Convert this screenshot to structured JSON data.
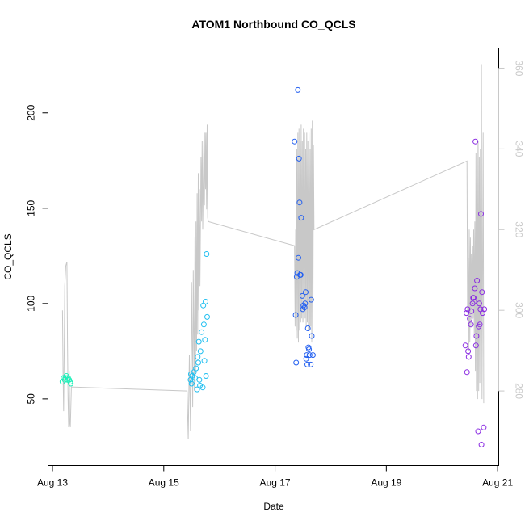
{
  "chart_data": {
    "type": "scatter",
    "title": "ATOM1 Northbound CO_QCLS",
    "xlabel": "Date",
    "ylabel": "CO_QCLS",
    "xlim": [
      12.92,
      21.02
    ],
    "ylim": [
      15,
      234
    ],
    "x_ticks": [
      13,
      15,
      17,
      19,
      21
    ],
    "x_tick_labels": [
      "Aug 13",
      "Aug 15",
      "Aug 17",
      "Aug 19",
      "Aug 21"
    ],
    "y_ticks": [
      50,
      100,
      150,
      200
    ],
    "y2_ticks": [
      280,
      300,
      320,
      340,
      360
    ],
    "y2lim": [
      261.5,
      365
    ],
    "y2_color": "#c8c8c8",
    "grid": false,
    "legend": "none",
    "series": [
      {
        "color": "#1ff0b9",
        "points": [
          [
            13.18,
            59
          ],
          [
            13.2,
            61
          ],
          [
            13.22,
            60
          ],
          [
            13.23,
            61
          ],
          [
            13.25,
            62
          ],
          [
            13.27,
            60
          ],
          [
            13.28,
            61
          ],
          [
            13.3,
            60
          ],
          [
            13.32,
            59
          ],
          [
            13.33,
            58
          ]
        ]
      },
      {
        "color": "#21bff0",
        "points": [
          [
            15.48,
            60
          ],
          [
            15.49,
            63
          ],
          [
            15.5,
            58
          ],
          [
            15.51,
            62
          ],
          [
            15.52,
            59
          ],
          [
            15.54,
            64
          ],
          [
            15.56,
            61
          ],
          [
            15.58,
            66
          ],
          [
            15.6,
            55
          ],
          [
            15.61,
            72
          ],
          [
            15.62,
            69
          ],
          [
            15.63,
            80
          ],
          [
            15.64,
            60
          ],
          [
            15.65,
            57
          ],
          [
            15.66,
            75
          ],
          [
            15.68,
            85
          ],
          [
            15.7,
            56
          ],
          [
            15.71,
            99
          ],
          [
            15.72,
            89
          ],
          [
            15.73,
            70
          ],
          [
            15.74,
            81
          ],
          [
            15.75,
            101
          ],
          [
            15.76,
            62
          ],
          [
            15.77,
            126
          ],
          [
            15.78,
            93
          ]
        ]
      },
      {
        "color": "#2460f0",
        "points": [
          [
            17.35,
            185
          ],
          [
            17.37,
            94
          ],
          [
            17.38,
            69
          ],
          [
            17.39,
            114
          ],
          [
            17.4,
            116
          ],
          [
            17.41,
            212
          ],
          [
            17.42,
            124
          ],
          [
            17.43,
            176
          ],
          [
            17.44,
            153
          ],
          [
            17.45,
            115
          ],
          [
            17.46,
            115
          ],
          [
            17.47,
            145
          ],
          [
            17.49,
            104
          ],
          [
            17.5,
            97
          ],
          [
            17.51,
            99
          ],
          [
            17.53,
            98
          ],
          [
            17.54,
            100
          ],
          [
            17.55,
            106
          ],
          [
            17.56,
            71
          ],
          [
            17.57,
            73
          ],
          [
            17.58,
            68
          ],
          [
            17.59,
            87
          ],
          [
            17.6,
            77
          ],
          [
            17.61,
            76
          ],
          [
            17.62,
            73
          ],
          [
            17.64,
            68
          ],
          [
            17.65,
            102
          ],
          [
            17.66,
            83
          ],
          [
            17.68,
            73
          ]
        ]
      },
      {
        "color": "#8a2be2",
        "points": [
          [
            20.42,
            78
          ],
          [
            20.44,
            95
          ],
          [
            20.45,
            64
          ],
          [
            20.46,
            97
          ],
          [
            20.47,
            75
          ],
          [
            20.48,
            72
          ],
          [
            20.5,
            92
          ],
          [
            20.52,
            89
          ],
          [
            20.53,
            96
          ],
          [
            20.55,
            100
          ],
          [
            20.56,
            103
          ],
          [
            20.57,
            103
          ],
          [
            20.58,
            101
          ],
          [
            20.59,
            108
          ],
          [
            20.6,
            185
          ],
          [
            20.61,
            78
          ],
          [
            20.62,
            83
          ],
          [
            20.63,
            112
          ],
          [
            20.65,
            33
          ],
          [
            20.66,
            88
          ],
          [
            20.67,
            100
          ],
          [
            20.68,
            89
          ],
          [
            20.69,
            97
          ],
          [
            20.7,
            147
          ],
          [
            20.71,
            26
          ],
          [
            20.72,
            106
          ],
          [
            20.73,
            95
          ],
          [
            20.75,
            35
          ],
          [
            20.76,
            97
          ]
        ]
      }
    ],
    "secondary_series": {
      "axis": "right",
      "color": "#c8c8c8",
      "points": [
        [
          13.18,
          300
        ],
        [
          13.19,
          285
        ],
        [
          13.2,
          275
        ],
        [
          13.21,
          289
        ],
        [
          13.22,
          306
        ],
        [
          13.24,
          311
        ],
        [
          13.26,
          312
        ],
        [
          13.27,
          292
        ],
        [
          13.28,
          278
        ],
        [
          13.29,
          271
        ],
        [
          13.3,
          285
        ],
        [
          13.31,
          272
        ],
        [
          13.32,
          271
        ],
        [
          13.34,
          281
        ],
        [
          15.42,
          280
        ],
        [
          15.44,
          268
        ],
        [
          15.46,
          289
        ],
        [
          15.48,
          270
        ],
        [
          15.5,
          307
        ],
        [
          15.52,
          276
        ],
        [
          15.53,
          310
        ],
        [
          15.55,
          280
        ],
        [
          15.56,
          318
        ],
        [
          15.57,
          285
        ],
        [
          15.58,
          322
        ],
        [
          15.59,
          290
        ],
        [
          15.6,
          329
        ],
        [
          15.61,
          294
        ],
        [
          15.62,
          334
        ],
        [
          15.63,
          300
        ],
        [
          15.64,
          330
        ],
        [
          15.65,
          306
        ],
        [
          15.67,
          338
        ],
        [
          15.68,
          322
        ],
        [
          15.69,
          342
        ],
        [
          15.7,
          320
        ],
        [
          15.72,
          342
        ],
        [
          15.73,
          326
        ],
        [
          15.74,
          344
        ],
        [
          15.75,
          330
        ],
        [
          15.76,
          344
        ],
        [
          15.77,
          325
        ],
        [
          15.78,
          346
        ],
        [
          15.79,
          323
        ],
        [
          15.8,
          322
        ],
        [
          17.35,
          316
        ],
        [
          17.36,
          296
        ],
        [
          17.37,
          320
        ],
        [
          17.38,
          295
        ],
        [
          17.39,
          340
        ],
        [
          17.4,
          293
        ],
        [
          17.41,
          344
        ],
        [
          17.42,
          292
        ],
        [
          17.43,
          345
        ],
        [
          17.44,
          295
        ],
        [
          17.45,
          342
        ],
        [
          17.46,
          297
        ],
        [
          17.47,
          346
        ],
        [
          17.48,
          298
        ],
        [
          17.49,
          342
        ],
        [
          17.5,
          297
        ],
        [
          17.51,
          345
        ],
        [
          17.52,
          297
        ],
        [
          17.53,
          344
        ],
        [
          17.54,
          298
        ],
        [
          17.55,
          340
        ],
        [
          17.56,
          296
        ],
        [
          17.57,
          344
        ],
        [
          17.58,
          297
        ],
        [
          17.59,
          342
        ],
        [
          17.6,
          295
        ],
        [
          17.61,
          344
        ],
        [
          17.62,
          295
        ],
        [
          17.63,
          340
        ],
        [
          17.64,
          296
        ],
        [
          17.65,
          345
        ],
        [
          17.66,
          292
        ],
        [
          17.67,
          347
        ],
        [
          17.68,
          294
        ],
        [
          17.69,
          341
        ],
        [
          17.7,
          320
        ],
        [
          20.45,
          337
        ],
        [
          20.46,
          300
        ],
        [
          20.47,
          313
        ],
        [
          20.48,
          290
        ],
        [
          20.49,
          320
        ],
        [
          20.5,
          292
        ],
        [
          20.51,
          318
        ],
        [
          20.52,
          296
        ],
        [
          20.53,
          314
        ],
        [
          20.54,
          300
        ],
        [
          20.55,
          316
        ],
        [
          20.56,
          298
        ],
        [
          20.57,
          320
        ],
        [
          20.58,
          294
        ],
        [
          20.59,
          322
        ],
        [
          20.6,
          285
        ],
        [
          20.61,
          339
        ],
        [
          20.62,
          280
        ],
        [
          20.63,
          343
        ],
        [
          20.64,
          278
        ],
        [
          20.65,
          342
        ],
        [
          20.66,
          280
        ],
        [
          20.67,
          338
        ],
        [
          20.68,
          282
        ],
        [
          20.69,
          340
        ],
        [
          20.7,
          290
        ],
        [
          20.71,
          361
        ],
        [
          20.72,
          278
        ],
        [
          20.74,
          344
        ],
        [
          20.75,
          277
        ]
      ]
    }
  }
}
